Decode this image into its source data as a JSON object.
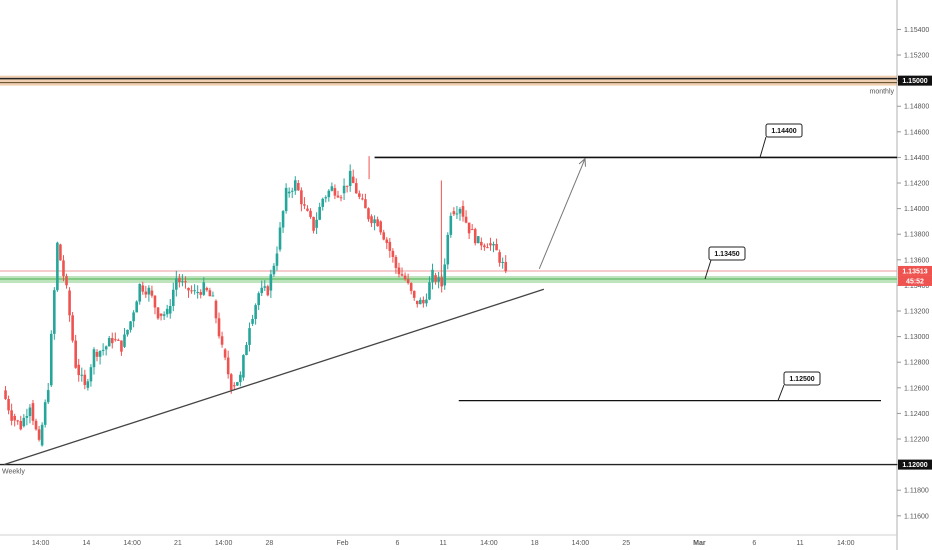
{
  "chart_data": {
    "type": "candlestick",
    "y_ticks": [
      "1.15400",
      "1.15200",
      "1.15000",
      "1.14800",
      "1.14600",
      "1.14400",
      "1.14200",
      "1.14000",
      "1.13800",
      "1.13600",
      "1.13400",
      "1.13200",
      "1.13000",
      "1.12800",
      "1.12600",
      "1.12400",
      "1.12200",
      "1.12000",
      "1.11800",
      "1.11600"
    ],
    "x_ticks": [
      {
        "label": "14:00",
        "i": 4
      },
      {
        "label": "14",
        "i": 9
      },
      {
        "label": "14:00",
        "i": 14
      },
      {
        "label": "21",
        "i": 19
      },
      {
        "label": "14:00",
        "i": 24
      },
      {
        "label": "28",
        "i": 29
      },
      {
        "label": "Feb",
        "i": 37
      },
      {
        "label": "6",
        "i": 43
      },
      {
        "label": "11",
        "i": 48
      },
      {
        "label": "14:00",
        "i": 53
      },
      {
        "label": "18",
        "i": 58
      },
      {
        "label": "14:00",
        "i": 63
      },
      {
        "label": "25",
        "i": 68
      },
      {
        "label": "6",
        "i": 82
      },
      {
        "label": "11",
        "i": 87
      },
      {
        "label": "14:00",
        "i": 92
      }
    ],
    "x_ticks_bold": [
      {
        "label": "Mar",
        "i": 76
      }
    ],
    "ylim": [
      1.1145,
      1.1563
    ],
    "levels": {
      "monthly": {
        "price": 1.15,
        "label": "monthly",
        "tag": "1.15000"
      },
      "weekly": {
        "price": 1.12,
        "label": "Weekly",
        "tag": "1.12000"
      },
      "support_1": {
        "price": 1.1345,
        "label": "1.13450"
      },
      "target": {
        "price": 1.144,
        "label": "1.14400"
      },
      "lower": {
        "price": 1.125,
        "label": "1.12500"
      }
    },
    "current": {
      "price": 1.13513,
      "tag": "1.13513",
      "countdown": "45:52"
    },
    "trendline": {
      "from": {
        "i": 0,
        "price": 1.12
      },
      "to": {
        "i": 59,
        "price": 1.1337
      }
    },
    "projection": {
      "from": {
        "i": 58.5,
        "price": 1.1353
      },
      "to": {
        "i": 63.5,
        "price": 1.1439
      }
    },
    "path": [
      [
        0,
        1.1258
      ],
      [
        1,
        1.1238
      ],
      [
        2,
        1.123
      ],
      [
        3,
        1.1248
      ],
      [
        4,
        1.1215
      ],
      [
        5,
        1.1262
      ],
      [
        6,
        1.1372
      ],
      [
        7,
        1.1336
      ],
      [
        8,
        1.1278
      ],
      [
        9,
        1.126
      ],
      [
        10,
        1.1288
      ],
      [
        11,
        1.129
      ],
      [
        12,
        1.1298
      ],
      [
        13,
        1.1292
      ],
      [
        14,
        1.1312
      ],
      [
        15,
        1.134
      ],
      [
        16,
        1.1336
      ],
      [
        17,
        1.1318
      ],
      [
        18,
        1.1318
      ],
      [
        19,
        1.1346
      ],
      [
        20,
        1.1338
      ],
      [
        21,
        1.1334
      ],
      [
        22,
        1.1338
      ],
      [
        23,
        1.1328
      ],
      [
        24,
        1.129
      ],
      [
        25,
        1.1262
      ],
      [
        26,
        1.1268
      ],
      [
        27,
        1.131
      ],
      [
        28,
        1.1334
      ],
      [
        29,
        1.1336
      ],
      [
        30,
        1.1368
      ],
      [
        31,
        1.1412
      ],
      [
        32,
        1.142
      ],
      [
        33,
        1.14
      ],
      [
        34,
        1.1385
      ],
      [
        35,
        1.1408
      ],
      [
        36,
        1.1416
      ],
      [
        37,
        1.1412
      ],
      [
        38,
        1.1425
      ],
      [
        39,
        1.1408
      ],
      [
        40,
        1.1394
      ],
      [
        41,
        1.139
      ],
      [
        42,
        1.1374
      ],
      [
        43,
        1.1354
      ],
      [
        44,
        1.1345
      ],
      [
        45,
        1.1328
      ],
      [
        46,
        1.1326
      ],
      [
        47,
        1.1348
      ],
      [
        48,
        1.134
      ],
      [
        49,
        1.1398
      ],
      [
        50,
        1.1402
      ],
      [
        51,
        1.1384
      ],
      [
        52,
        1.1374
      ],
      [
        53,
        1.1373
      ],
      [
        54,
        1.1366
      ],
      [
        55,
        1.1351
      ]
    ]
  },
  "colors": {
    "up": "#26a69a",
    "down": "#ef5350",
    "monthly_band": "#e6a873",
    "support_band": "#a8dba8"
  }
}
